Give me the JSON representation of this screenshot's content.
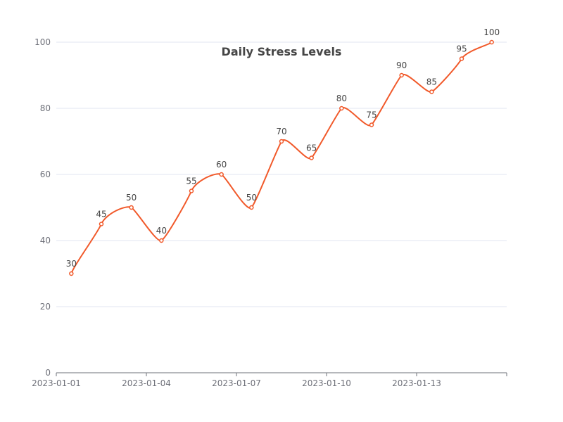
{
  "chart_data": {
    "type": "line",
    "title": "Daily Stress Levels",
    "xlabel": "",
    "ylabel": "",
    "x": [
      "2023-01-01",
      "2023-01-02",
      "2023-01-03",
      "2023-01-04",
      "2023-01-05",
      "2023-01-06",
      "2023-01-07",
      "2023-01-08",
      "2023-01-09",
      "2023-01-10",
      "2023-01-11",
      "2023-01-12",
      "2023-01-13",
      "2023-01-14",
      "2023-01-15"
    ],
    "x_tick_labels": [
      "2023-01-01",
      "2023-01-04",
      "2023-01-07",
      "2023-01-10",
      "2023-01-13"
    ],
    "series": [
      {
        "values": [
          30,
          45,
          50,
          40,
          55,
          60,
          50,
          70,
          65,
          80,
          75,
          90,
          85,
          95,
          100
        ],
        "color": "#f1592a"
      }
    ],
    "ylim": [
      0,
      100
    ],
    "y_ticks": [
      0,
      20,
      40,
      60,
      80,
      100
    ],
    "grid": true,
    "smooth": true,
    "data_labels": true,
    "legend": "none"
  }
}
